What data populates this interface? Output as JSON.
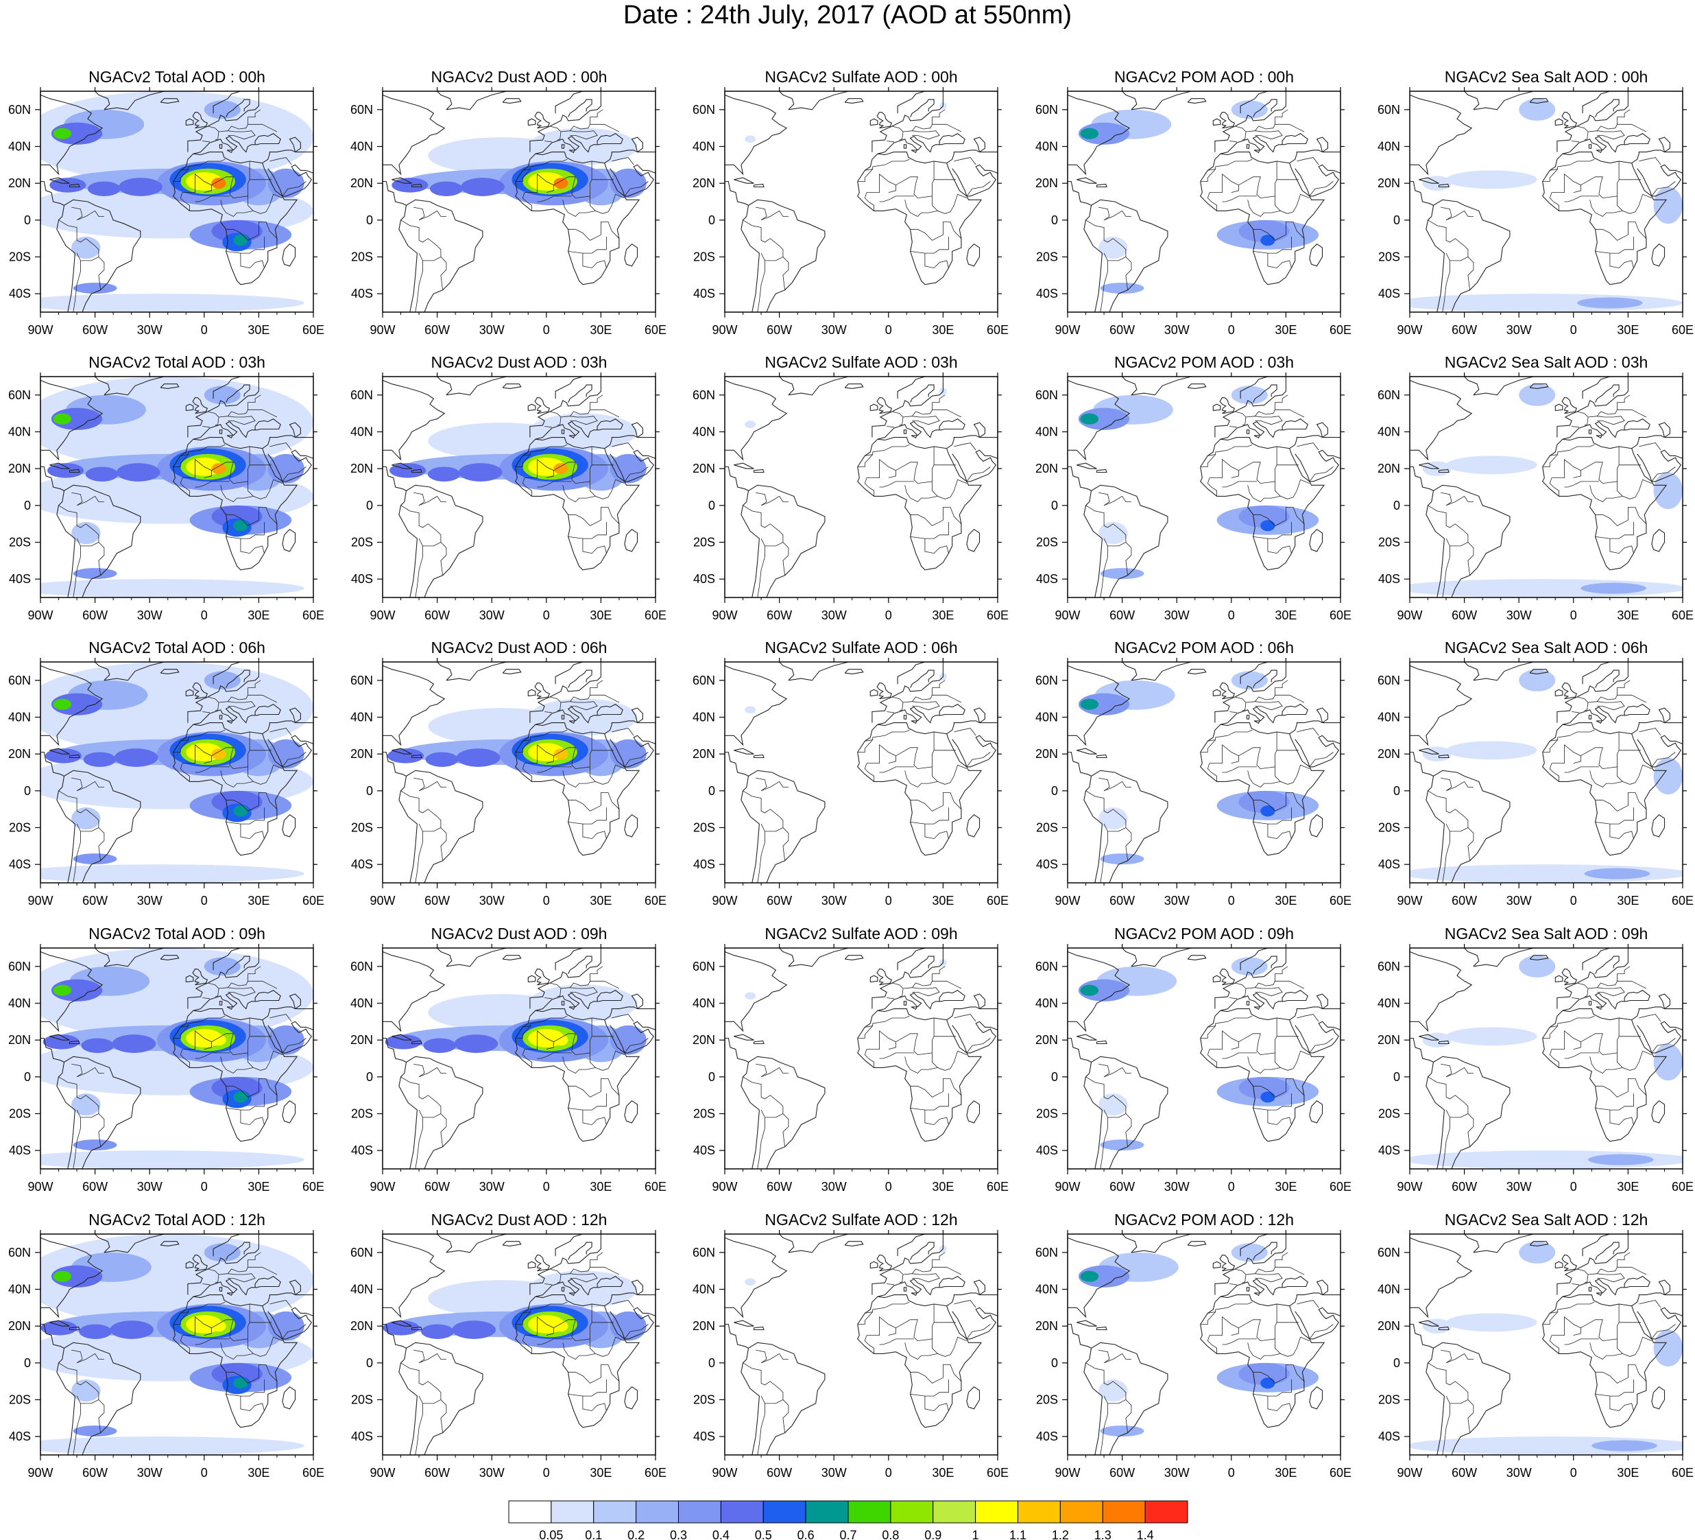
{
  "page": {
    "title": "Date : 24th July, 2017 (AOD at 550nm)"
  },
  "grid": {
    "rows": [
      "00h",
      "03h",
      "06h",
      "09h",
      "12h"
    ],
    "columns": [
      "Total",
      "Dust",
      "Sulfate",
      "POM",
      "Sea Salt"
    ]
  },
  "panels": [
    [
      "NGACv2 Total AOD : 00h",
      "NGACv2 Dust AOD : 00h",
      "NGACv2 Sulfate AOD : 00h",
      "NGACv2 POM AOD : 00h",
      "NGACv2 Sea Salt AOD : 00h"
    ],
    [
      "NGACv2 Total AOD : 03h",
      "NGACv2 Dust AOD : 03h",
      "NGACv2 Sulfate AOD : 03h",
      "NGACv2 POM AOD : 03h",
      "NGACv2 Sea Salt AOD : 03h"
    ],
    [
      "NGACv2 Total AOD : 06h",
      "NGACv2 Dust AOD : 06h",
      "NGACv2 Sulfate AOD : 06h",
      "NGACv2 POM AOD : 06h",
      "NGACv2 Sea Salt AOD : 06h"
    ],
    [
      "NGACv2 Total AOD : 09h",
      "NGACv2 Dust AOD : 09h",
      "NGACv2 Sulfate AOD : 09h",
      "NGACv2 POM AOD : 09h",
      "NGACv2 Sea Salt  AOD : 09h"
    ],
    [
      "NGACv2 Total AOD  : 12h",
      "NGACv2 Dust AOD : 12h",
      "NGACv2 Sulfate AOD : 12h",
      "NGACv2 POM  AOD : 12h",
      "NGACv2 Sea Salt  AOD : 12h"
    ]
  ],
  "axes": {
    "lon_ticks": [
      "90W",
      "60W",
      "30W",
      "0",
      "30E",
      "60E"
    ],
    "lat_ticks": [
      "60N",
      "40N",
      "20N",
      "0",
      "20S",
      "40S"
    ],
    "lon_range": [
      -90,
      60
    ],
    "lat_range": [
      -50,
      70
    ]
  },
  "colorbar": {
    "labels": [
      "0.05",
      "0.1",
      "0.2",
      "0.3",
      "0.4",
      "0.5",
      "0.6",
      "0.7",
      "0.8",
      "0.9",
      "1",
      "1.1",
      "1.2",
      "1.3",
      "1.4"
    ],
    "colors": [
      "#ffffff",
      "#d7e3fc",
      "#b7cbfa",
      "#98b1f6",
      "#7f97f2",
      "#5f6eec",
      "#1f5ff0",
      "#009891",
      "#3fd600",
      "#8fe600",
      "#bdeb3f",
      "#ffff00",
      "#ffc400",
      "#ffa200",
      "#ff7a00",
      "#ff2a1a"
    ]
  },
  "colors": {
    "coast": "#222222",
    "frame": "#000000"
  }
}
